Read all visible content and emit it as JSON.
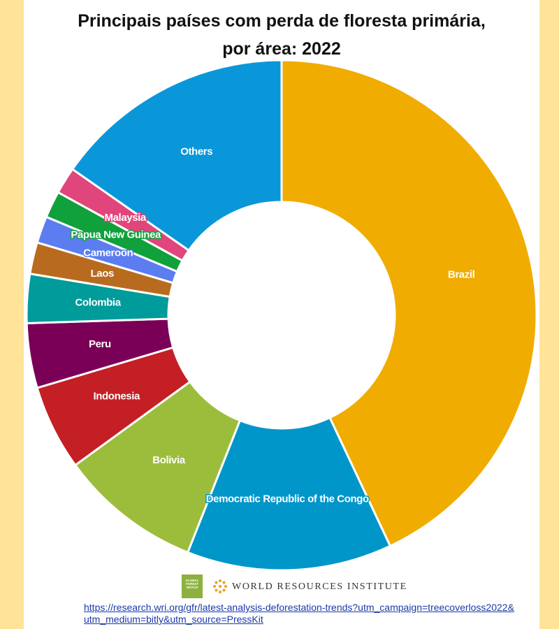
{
  "title_line1": "Principais países com perda de floresta primária,",
  "title_line2": "por área: 2022",
  "logo_gfw": "GLOBAL FOREST WATCH",
  "logo_wri": "WORLD RESOURCES INSTITUTE",
  "source_link": "https://research.wri.org/gfr/latest-analysis-deforestation-trends?utm_campaign=treecoverloss2022&utm_medium=bitly&utm_source=PressKit",
  "chart_data": {
    "type": "pie",
    "unit": "percent",
    "title": "Principais países com perda de floresta primária, por área: 2022",
    "slices": [
      {
        "label": "Brazil",
        "value": 43.0,
        "color": "#f0ac00",
        "label_color": "#ffffff"
      },
      {
        "label": "Democratic Republic of the Congo",
        "value": 13.0,
        "color": "#0096c9",
        "label_color": "#ffffff"
      },
      {
        "label": "Bolivia",
        "value": 9.0,
        "color": "#9cbd3c",
        "label_color": "#ffffff"
      },
      {
        "label": "Indonesia",
        "value": 5.4,
        "color": "#c41f24",
        "label_color": "#ffffff"
      },
      {
        "label": "Peru",
        "value": 4.1,
        "color": "#7a0057",
        "label_color": "#ffffff"
      },
      {
        "label": "Colombia",
        "value": 3.1,
        "color": "#009b9b",
        "label_color": "#ffffff"
      },
      {
        "label": "Laos",
        "value": 2.0,
        "color": "#b86b1e",
        "label_color": "#ffffff"
      },
      {
        "label": "Cameroon",
        "value": 1.7,
        "color": "#5b7df0",
        "label_color": "#ffffff"
      },
      {
        "label": "Papua New Guinea",
        "value": 1.7,
        "color": "#10a03c",
        "label_color": "#ffffff"
      },
      {
        "label": "Malaysia",
        "value": 1.7,
        "color": "#e0457b",
        "label_color": "#ffffff"
      },
      {
        "label": "Others",
        "value": 15.3,
        "color": "#0a97d9",
        "label_color": "#ffffff"
      }
    ],
    "legend": "none"
  }
}
